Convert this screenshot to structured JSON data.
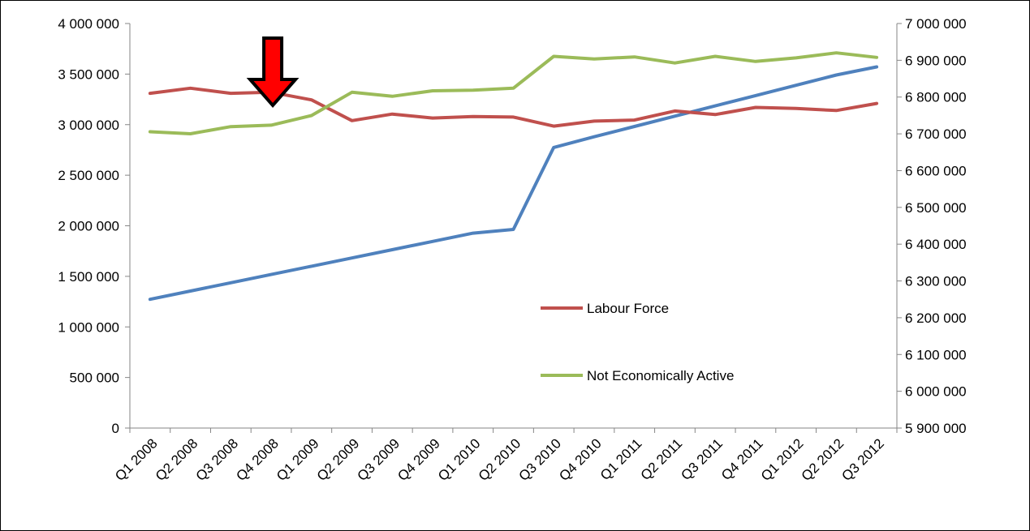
{
  "chart_data": {
    "type": "line",
    "categories": [
      "Q1 2008",
      "Q2 2008",
      "Q3 2008",
      "Q4 2008",
      "Q1 2009",
      "Q2 2009",
      "Q3 2009",
      "Q4 2009",
      "Q1 2010",
      "Q2 2010",
      "Q3 2010",
      "Q4 2010",
      "Q1 2011",
      "Q2 2011",
      "Q3 2011",
      "Q4 2011",
      "Q1 2012",
      "Q2 2012",
      "Q3 2012"
    ],
    "y_left": {
      "ylim": [
        0,
        4000000
      ],
      "ticks": [
        0,
        500000,
        1000000,
        1500000,
        2000000,
        2500000,
        3000000,
        3500000,
        4000000
      ],
      "tick_labels": [
        "0",
        "500 000",
        "1 000 000",
        "1 500 000",
        "2 000 000",
        "2 500 000",
        "3 000 000",
        "3 500 000",
        "4 000 000"
      ]
    },
    "y_right": {
      "ylim": [
        5900000,
        7000000
      ],
      "ticks": [
        5900000,
        6000000,
        6100000,
        6200000,
        6300000,
        6400000,
        6500000,
        6600000,
        6700000,
        6800000,
        6900000,
        7000000
      ],
      "tick_labels": [
        "5 900 000",
        "6 000 000",
        "6 100 000",
        "6 200 000",
        "6 300 000",
        "6 400 000",
        "6 500 000",
        "6 600 000",
        "6 700 000",
        "6 800 000",
        "6 900 000",
        "7 000 000"
      ]
    },
    "series": [
      {
        "name": "Labour Force",
        "axis": "left",
        "color": "#c0504d",
        "values": [
          3310000,
          3360000,
          3310000,
          3320000,
          3245000,
          3040000,
          3105000,
          3065000,
          3080000,
          3075000,
          2985000,
          3035000,
          3045000,
          3135000,
          3100000,
          3170000,
          3160000,
          3140000,
          3210000
        ]
      },
      {
        "name": "Not Economically Active",
        "axis": "left",
        "color": "#9bbb59",
        "values": [
          2930000,
          2910000,
          2980000,
          2995000,
          3090000,
          3320000,
          3280000,
          3335000,
          3340000,
          3360000,
          3675000,
          3650000,
          3670000,
          3610000,
          3675000,
          3625000,
          3660000,
          3710000,
          3665000
        ]
      },
      {
        "axis": "right",
        "color": "#4f81bd",
        "values": [
          6250000,
          6272500,
          6295000,
          6317500,
          6340000,
          6362500,
          6385000,
          6407500,
          6430000,
          6440000,
          6663000,
          6692000,
          6720000,
          6748000,
          6776000,
          6804000,
          6832000,
          6860000,
          6882000
        ]
      }
    ],
    "legend": {
      "placement": "center-right",
      "entries": [
        "Labour Force",
        "Not Economically Active"
      ]
    },
    "annotation": {
      "type": "down-arrow",
      "category": "Q4 2008",
      "fill": "#ff0000",
      "stroke": "#000000"
    },
    "grid": false
  }
}
